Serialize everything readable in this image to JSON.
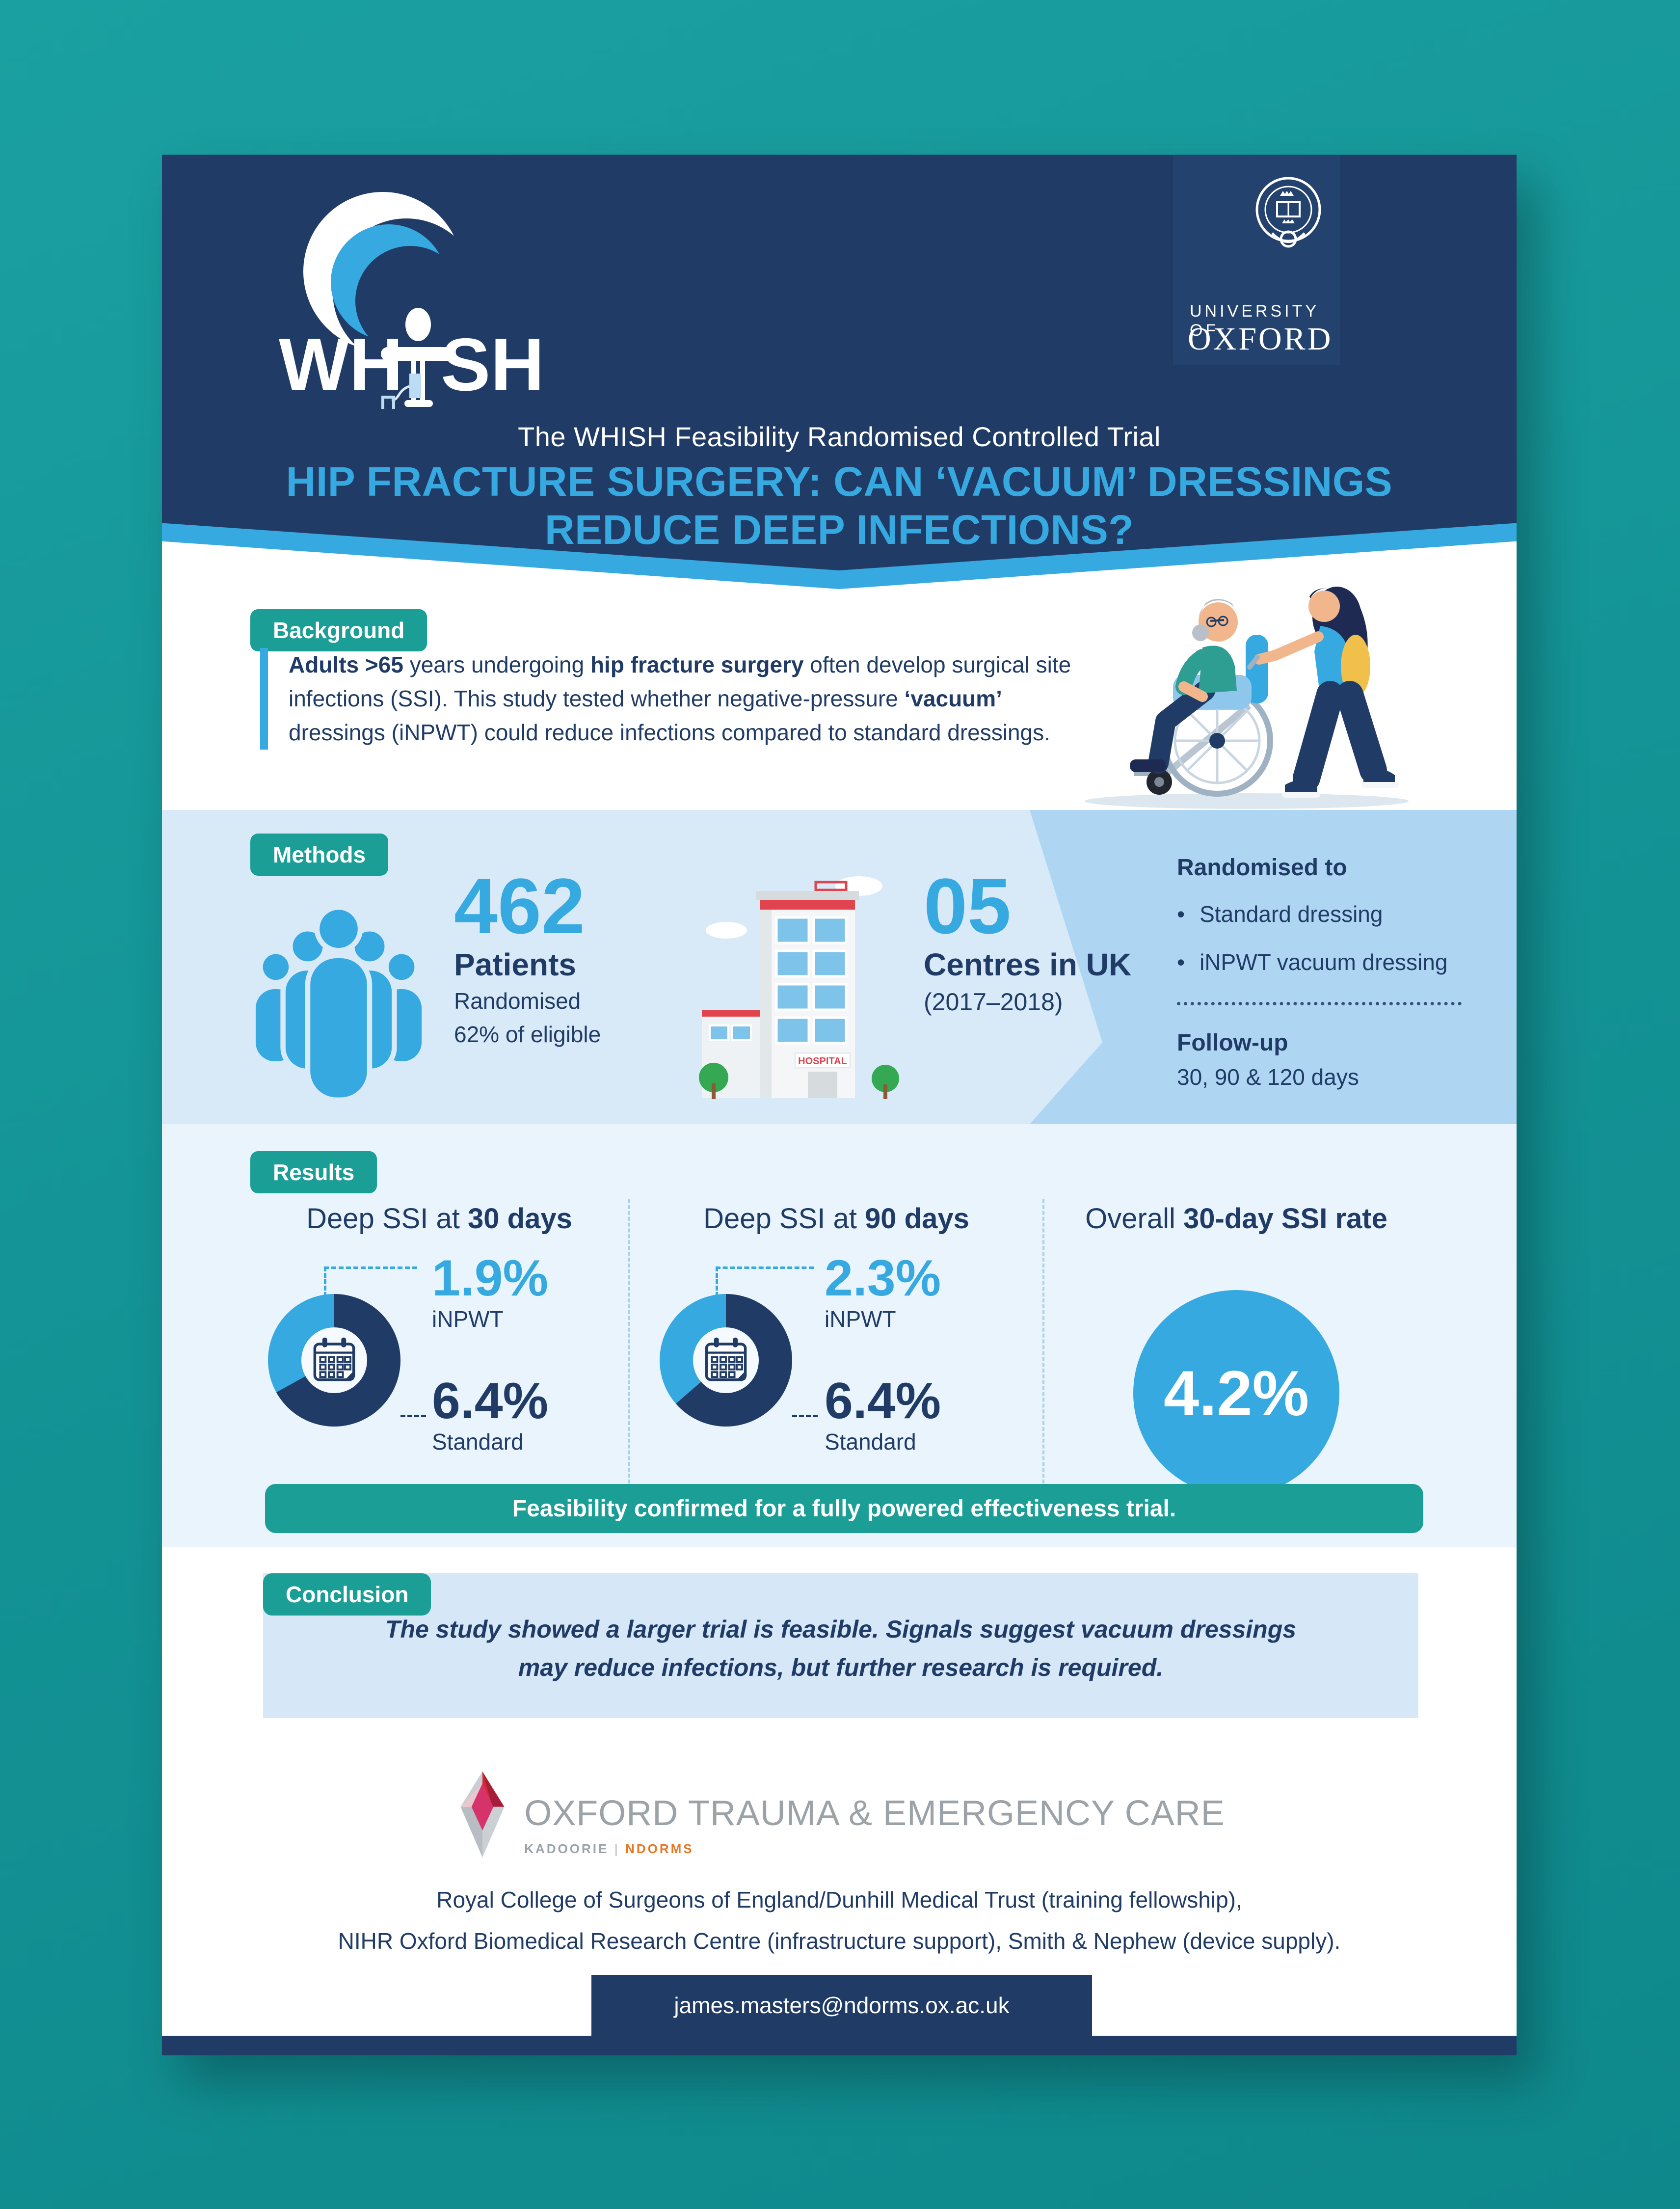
{
  "header": {
    "title_line1": "The WHISH Feasibility Randomised Controlled Trial",
    "title_line2": "HIP FRACTURE SURGERY: CAN ‘VACUUM’ DRESSINGS",
    "title_line3": "REDUCE DEEP INFECTIONS?",
    "whish_logo": {
      "left": "WH",
      "right": "SH"
    },
    "oxford": {
      "line1": "UNIVERSITY OF",
      "line2": "OXFORD"
    },
    "colors": {
      "navy": "#203C66",
      "blue": "#36A9E1",
      "teal_badge": "#1B9E96"
    }
  },
  "background_section": {
    "badge": "Background",
    "segments": [
      {
        "t": "Adults >65",
        "b": true
      },
      {
        "t": " years undergoing ",
        "b": false
      },
      {
        "t": "hip fracture surgery",
        "b": true
      },
      {
        "t": " often develop surgical site infections (SSI). This study tested whether negative-pressure ",
        "b": false
      },
      {
        "t": "‘vacuum’",
        "b": true
      },
      {
        "t": " dressings (iNPWT) could reduce infections compared to standard dressings.",
        "b": false
      }
    ]
  },
  "methods": {
    "badge": "Methods",
    "patients": {
      "number": "462",
      "label": "Patients",
      "line1": "Randomised",
      "line2": "62% of eligible"
    },
    "centres": {
      "number": "05",
      "label": "Centres in UK",
      "years": "(2017–2018)",
      "hospital_sign": "HOSPITAL"
    },
    "randomised_panel": {
      "title": "Randomised to",
      "bullets": [
        "Standard dressing",
        "iNPWT vacuum dressing"
      ],
      "followup_title": "Follow-up",
      "followup_text": "30, 90 & 120 days"
    }
  },
  "results": {
    "badge": "Results",
    "columns": [
      {
        "header": [
          {
            "t": "Deep SSI at ",
            "b": false
          },
          {
            "t": "30 days",
            "b": true
          }
        ],
        "inpwt_value": "1.9%",
        "inpwt_label": "iNPWT",
        "standard_value": "6.4%",
        "standard_label": "Standard"
      },
      {
        "header": [
          {
            "t": "Deep SSI at ",
            "b": false
          },
          {
            "t": "90 days",
            "b": true
          }
        ],
        "inpwt_value": "2.3%",
        "inpwt_label": "iNPWT",
        "standard_value": "6.4%",
        "standard_label": "Standard"
      }
    ],
    "overall": {
      "header": [
        {
          "t": "Overall ",
          "b": false
        },
        {
          "t": "30-day SSI rate",
          "b": true
        }
      ],
      "value": "4.2%"
    },
    "banner": "Feasibility confirmed for a fully powered effectiveness trial."
  },
  "chart_data": [
    {
      "type": "pie",
      "title": "Deep SSI at 30 days",
      "categories": [
        "iNPWT",
        "Standard"
      ],
      "values": [
        1.9,
        6.4
      ]
    },
    {
      "type": "pie",
      "title": "Deep SSI at 90 days",
      "categories": [
        "iNPWT",
        "Standard"
      ],
      "values": [
        2.3,
        6.4
      ]
    },
    {
      "type": "pie",
      "title": "Overall 30-day SSI rate",
      "categories": [
        "Overall"
      ],
      "values": [
        4.2
      ]
    }
  ],
  "conclusion": {
    "badge": "Conclusion",
    "line1": "The study showed a larger trial is feasible. Signals suggest vacuum dressings",
    "line2": "may reduce infections, but further research is required."
  },
  "footer": {
    "brand": "OXFORD TRAUMA & EMERGENCY CARE",
    "brand_sub_left": "KADOORIE",
    "brand_sub_divider": "|",
    "brand_sub_right": "NDORMS",
    "funding_line1": "Royal College of Surgeons of England/Dunhill Medical Trust (training fellowship),",
    "funding_line2": "NIHR Oxford Biomedical Research Centre (infrastructure support), Smith & Nephew (device supply).",
    "email": "james.masters@ndorms.ox.ac.uk"
  }
}
